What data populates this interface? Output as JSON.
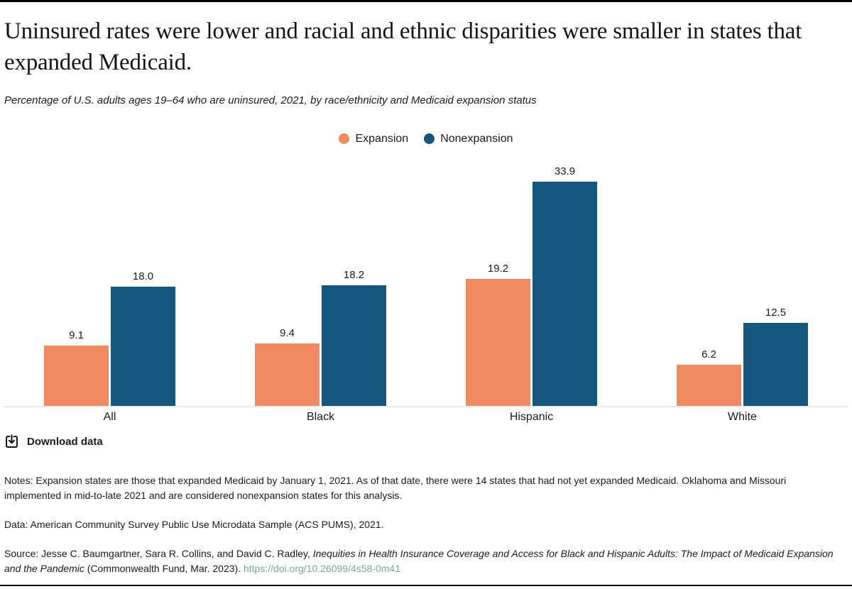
{
  "header": {
    "title": "Uninsured rates were lower and racial and ethnic disparities were smaller in states that expanded Medicaid.",
    "subtitle": "Percentage of U.S. adults ages 19–64 who are uninsured, 2021, by race/ethnicity and Medicaid expansion status"
  },
  "chart_data": {
    "type": "bar",
    "title": "Uninsured rates were lower and racial and ethnic disparities were smaller in states that expanded Medicaid.",
    "subtitle": "Percentage of U.S. adults ages 19–64 who are uninsured, 2021, by race/ethnicity and Medicaid expansion status",
    "categories": [
      "All",
      "Black",
      "Hispanic",
      "White"
    ],
    "series": [
      {
        "name": "Expansion",
        "color": "#F08A63",
        "values": [
          9.1,
          9.4,
          19.2,
          6.2
        ],
        "labels": [
          "9.1",
          "9.4",
          "19.2",
          "6.2"
        ]
      },
      {
        "name": "Nonexpansion",
        "color": "#15567D",
        "values": [
          18.0,
          18.2,
          33.9,
          12.5
        ],
        "labels": [
          "18.0",
          "18.2",
          "33.9",
          "12.5"
        ]
      }
    ],
    "xlabel": "",
    "ylabel": "",
    "ylim": [
      0,
      35
    ],
    "grid": false,
    "value_labels_shown": true,
    "legend_position": "top-center",
    "baseline_color": "#EBEBEB"
  },
  "legend": [
    {
      "label": "Expansion",
      "color": "#F08A63"
    },
    {
      "label": "Nonexpansion",
      "color": "#15567D"
    }
  ],
  "actions": {
    "download_label": "Download data",
    "download_icon": "download-bracket-arrow-icon"
  },
  "footer": {
    "notes": "Notes: Expansion states are those that expanded Medicaid by January 1, 2021. As of that date, there were 14 states that had not yet expanded Medicaid. Oklahoma and Missouri implemented in mid-to-late 2021 and are considered nonexpansion states for this analysis.",
    "data_line": "Data: American Community Survey Public Use Microdata Sample (ACS PUMS), 2021.",
    "source_prefix": "Source: Jesse C. Baumgartner, Sara R. Collins, and David C. Radley, ",
    "source_italic": "Inequities in Health Insurance Coverage and Access for Black and Hispanic Adults: The Impact of Medicaid Expansion and the Pandemic",
    "source_suffix": " (Commonwealth Fund, Mar. 2023). ",
    "source_link": "https://doi.org/10.26099/4s58-0m41"
  },
  "colors": {
    "expansion_orange": "#F08A63",
    "nonexpansion_blue": "#15567D",
    "link_green": "#6FAE91",
    "text": "#1A1A1A",
    "rule_black": "#000000",
    "baseline_gray": "#EBEBEB"
  }
}
